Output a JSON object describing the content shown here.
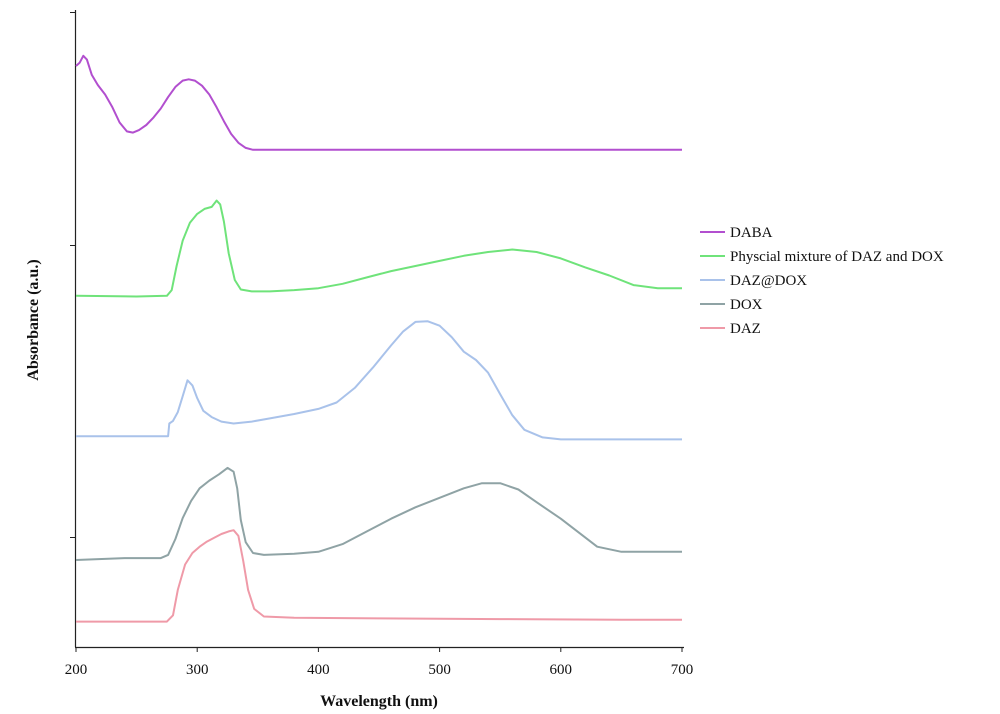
{
  "chart_data": {
    "type": "line",
    "title": "",
    "xlabel": "Wavelength (nm)",
    "ylabel": "Absorbance (a.u.)",
    "xlim": [
      200,
      700
    ],
    "xticks": [
      "200",
      "300",
      "400",
      "500",
      "600",
      "700"
    ],
    "yticks_labeled": false,
    "grid": false,
    "legend_position": "right",
    "series": [
      {
        "name": "DABA",
        "color": "#b24fcf",
        "points": [
          [
            200,
            0.915
          ],
          [
            203,
            0.92
          ],
          [
            206,
            0.931
          ],
          [
            209,
            0.925
          ],
          [
            213,
            0.901
          ],
          [
            218,
            0.885
          ],
          [
            224,
            0.87
          ],
          [
            230,
            0.85
          ],
          [
            236,
            0.826
          ],
          [
            242,
            0.812
          ],
          [
            247,
            0.81
          ],
          [
            252,
            0.814
          ],
          [
            258,
            0.822
          ],
          [
            264,
            0.834
          ],
          [
            270,
            0.848
          ],
          [
            276,
            0.866
          ],
          [
            282,
            0.882
          ],
          [
            288,
            0.892
          ],
          [
            293,
            0.894
          ],
          [
            298,
            0.892
          ],
          [
            304,
            0.884
          ],
          [
            310,
            0.87
          ],
          [
            316,
            0.85
          ],
          [
            322,
            0.828
          ],
          [
            328,
            0.808
          ],
          [
            334,
            0.794
          ],
          [
            340,
            0.786
          ],
          [
            346,
            0.783
          ],
          [
            360,
            0.783
          ],
          [
            400,
            0.783
          ],
          [
            500,
            0.783
          ],
          [
            600,
            0.783
          ],
          [
            700,
            0.783
          ]
        ]
      },
      {
        "name": "Physcial mixture of DAZ and DOX",
        "color": "#6fe37a",
        "points": [
          [
            200,
            0.553
          ],
          [
            250,
            0.552
          ],
          [
            275,
            0.553
          ],
          [
            279,
            0.562
          ],
          [
            283,
            0.6
          ],
          [
            288,
            0.64
          ],
          [
            294,
            0.668
          ],
          [
            300,
            0.682
          ],
          [
            306,
            0.69
          ],
          [
            312,
            0.693
          ],
          [
            316,
            0.703
          ],
          [
            319,
            0.697
          ],
          [
            322,
            0.67
          ],
          [
            326,
            0.62
          ],
          [
            331,
            0.578
          ],
          [
            336,
            0.563
          ],
          [
            345,
            0.56
          ],
          [
            360,
            0.56
          ],
          [
            380,
            0.562
          ],
          [
            400,
            0.565
          ],
          [
            420,
            0.572
          ],
          [
            440,
            0.582
          ],
          [
            460,
            0.592
          ],
          [
            480,
            0.6
          ],
          [
            500,
            0.608
          ],
          [
            520,
            0.616
          ],
          [
            540,
            0.622
          ],
          [
            560,
            0.626
          ],
          [
            580,
            0.622
          ],
          [
            600,
            0.612
          ],
          [
            620,
            0.598
          ],
          [
            640,
            0.585
          ],
          [
            660,
            0.57
          ],
          [
            680,
            0.565
          ],
          [
            700,
            0.565
          ]
        ]
      },
      {
        "name": "DAZ@DOX",
        "color": "#a9c2ea",
        "points": [
          [
            200,
            0.332
          ],
          [
            240,
            0.332
          ],
          [
            276,
            0.332
          ],
          [
            277,
            0.352
          ],
          [
            280,
            0.356
          ],
          [
            284,
            0.37
          ],
          [
            288,
            0.395
          ],
          [
            292,
            0.42
          ],
          [
            296,
            0.412
          ],
          [
            300,
            0.392
          ],
          [
            305,
            0.372
          ],
          [
            312,
            0.362
          ],
          [
            320,
            0.355
          ],
          [
            330,
            0.352
          ],
          [
            345,
            0.355
          ],
          [
            360,
            0.36
          ],
          [
            380,
            0.367
          ],
          [
            400,
            0.375
          ],
          [
            415,
            0.385
          ],
          [
            430,
            0.408
          ],
          [
            445,
            0.44
          ],
          [
            460,
            0.475
          ],
          [
            470,
            0.497
          ],
          [
            480,
            0.512
          ],
          [
            490,
            0.513
          ],
          [
            500,
            0.506
          ],
          [
            510,
            0.488
          ],
          [
            520,
            0.465
          ],
          [
            530,
            0.452
          ],
          [
            540,
            0.432
          ],
          [
            550,
            0.398
          ],
          [
            560,
            0.365
          ],
          [
            570,
            0.342
          ],
          [
            585,
            0.33
          ],
          [
            600,
            0.327
          ],
          [
            650,
            0.327
          ],
          [
            700,
            0.327
          ]
        ]
      },
      {
        "name": "DOX",
        "color": "#8fa3a5",
        "points": [
          [
            200,
            0.137
          ],
          [
            240,
            0.14
          ],
          [
            270,
            0.14
          ],
          [
            276,
            0.145
          ],
          [
            282,
            0.17
          ],
          [
            288,
            0.203
          ],
          [
            295,
            0.23
          ],
          [
            302,
            0.25
          ],
          [
            310,
            0.262
          ],
          [
            318,
            0.272
          ],
          [
            325,
            0.282
          ],
          [
            330,
            0.276
          ],
          [
            333,
            0.25
          ],
          [
            336,
            0.2
          ],
          [
            340,
            0.165
          ],
          [
            346,
            0.148
          ],
          [
            355,
            0.145
          ],
          [
            380,
            0.147
          ],
          [
            400,
            0.15
          ],
          [
            420,
            0.162
          ],
          [
            440,
            0.182
          ],
          [
            460,
            0.202
          ],
          [
            480,
            0.22
          ],
          [
            500,
            0.235
          ],
          [
            520,
            0.25
          ],
          [
            535,
            0.258
          ],
          [
            550,
            0.258
          ],
          [
            565,
            0.248
          ],
          [
            580,
            0.228
          ],
          [
            600,
            0.202
          ],
          [
            615,
            0.18
          ],
          [
            630,
            0.158
          ],
          [
            650,
            0.15
          ],
          [
            700,
            0.15
          ]
        ]
      },
      {
        "name": "DAZ",
        "color": "#ef9aa8",
        "points": [
          [
            200,
            0.04
          ],
          [
            240,
            0.04
          ],
          [
            275,
            0.04
          ],
          [
            280,
            0.05
          ],
          [
            284,
            0.09
          ],
          [
            290,
            0.13
          ],
          [
            296,
            0.148
          ],
          [
            302,
            0.158
          ],
          [
            308,
            0.166
          ],
          [
            314,
            0.172
          ],
          [
            320,
            0.178
          ],
          [
            326,
            0.182
          ],
          [
            330,
            0.184
          ],
          [
            334,
            0.175
          ],
          [
            338,
            0.135
          ],
          [
            342,
            0.09
          ],
          [
            347,
            0.06
          ],
          [
            355,
            0.048
          ],
          [
            380,
            0.046
          ],
          [
            450,
            0.045
          ],
          [
            550,
            0.044
          ],
          [
            650,
            0.043
          ],
          [
            700,
            0.043
          ]
        ]
      }
    ]
  }
}
